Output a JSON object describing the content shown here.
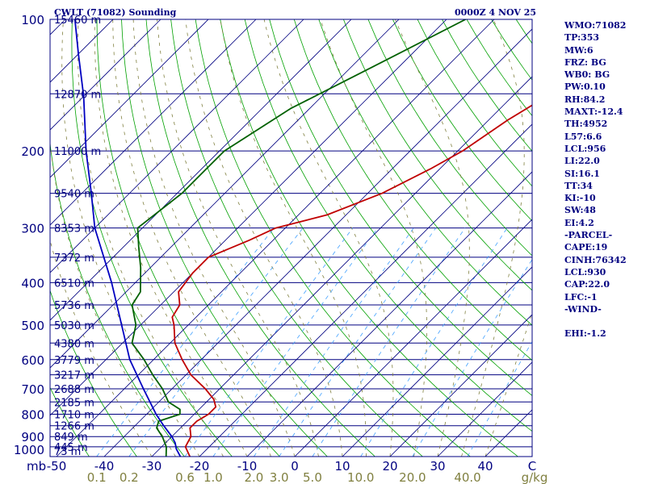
{
  "header": {
    "station": "CWLT (71082) Sounding",
    "time": "0000Z  4 NOV 25"
  },
  "indices": [
    "WMO:71082",
    "TP:353",
    "MW:6",
    "FRZ: BG",
    "WB0: BG",
    "PW:0.10",
    "RH:84.2",
    "MAXT:-12.4",
    "TH:4952",
    "L57:6.6",
    "LCL:956",
    "LI:22.0",
    "SI:16.1",
    "TT:34",
    "KI:-10",
    "SW:48",
    "EI:4.2",
    "-PARCEL-",
    "CAPE:19",
    "CINH:76342",
    "LCL:930",
    "CAP:22.0",
    "LFC:-1",
    "-WIND-",
    "",
    "EHI:-1.2"
  ],
  "colors": {
    "frame": "#000080",
    "isobar": "#000080",
    "isotherm": "#000080",
    "dry_adiabat": "#00a000",
    "moist_adiabat": "#808040",
    "mixing_ratio": "#40a0ff",
    "temperature": "#c00000",
    "dewpoint": "#006000",
    "parcel": "#0000c0",
    "mixing_label": "#808040"
  },
  "chart_data": {
    "type": "skew-t",
    "x_unit": "°C",
    "y_unit": "mb",
    "pressure_levels": [
      100,
      200,
      300,
      400,
      500,
      600,
      700,
      800,
      900,
      1000
    ],
    "pressure_labels": [
      "100",
      "200",
      "300",
      "400",
      "500",
      "600",
      "700",
      "800",
      "900",
      "1000"
    ],
    "y_axis_unit_label": "mb",
    "temperature_ticks": [
      -50,
      -40,
      -30,
      -20,
      -10,
      0,
      10,
      20,
      30,
      40
    ],
    "temperature_labels": [
      "-50",
      "-40",
      "-30",
      "-20",
      "-10",
      "0",
      "10",
      "20",
      "30",
      "40",
      "C"
    ],
    "height_labels": [
      {
        "p": 100,
        "text": "15460 m"
      },
      {
        "p": 148,
        "text": "12870 m"
      },
      {
        "p": 200,
        "text": "11000 m"
      },
      {
        "p": 250,
        "text": "9540 m"
      },
      {
        "p": 300,
        "text": "8353 m"
      },
      {
        "p": 350,
        "text": "7372 m"
      },
      {
        "p": 400,
        "text": "6510 m"
      },
      {
        "p": 450,
        "text": "5736 m"
      },
      {
        "p": 500,
        "text": "5030 m"
      },
      {
        "p": 550,
        "text": "4380 m"
      },
      {
        "p": 600,
        "text": "3779 m"
      },
      {
        "p": 650,
        "text": "3217 m"
      },
      {
        "p": 700,
        "text": "2688 m"
      },
      {
        "p": 750,
        "text": "2185 m"
      },
      {
        "p": 800,
        "text": "1710 m"
      },
      {
        "p": 850,
        "text": "1266 m"
      },
      {
        "p": 900,
        "text": "849 m"
      },
      {
        "p": 950,
        "text": "445 m"
      },
      {
        "p": 1000,
        "text": "73 m"
      }
    ],
    "mixing_ratio_lines": [
      0.1,
      0.2,
      0.6,
      1.0,
      2.0,
      3.0,
      5.0,
      10.0,
      20.0,
      40.0
    ],
    "mixing_ratio_labels": [
      "0.1",
      "0.2",
      "0.6",
      "1.0",
      "2.0",
      "3.0",
      "5.0",
      "10.0",
      "20.0",
      "40.0",
      "g/kg"
    ],
    "series": [
      {
        "name": "temperature",
        "points": [
          [
            100,
            -9.5
          ],
          [
            115,
            -14
          ],
          [
            140,
            -21
          ],
          [
            170,
            -26
          ],
          [
            200,
            -29
          ],
          [
            220,
            -32
          ],
          [
            250,
            -37
          ],
          [
            280,
            -44
          ],
          [
            300,
            -52
          ],
          [
            320,
            -55
          ],
          [
            350,
            -60
          ],
          [
            380,
            -60
          ],
          [
            420,
            -59
          ],
          [
            450,
            -56
          ],
          [
            480,
            -55
          ],
          [
            500,
            -53
          ],
          [
            550,
            -49
          ],
          [
            600,
            -44
          ],
          [
            650,
            -39
          ],
          [
            700,
            -33
          ],
          [
            740,
            -29
          ],
          [
            770,
            -27
          ],
          [
            800,
            -27
          ],
          [
            830,
            -28
          ],
          [
            860,
            -28
          ],
          [
            900,
            -26
          ],
          [
            950,
            -25
          ],
          [
            1000,
            -22
          ]
        ]
      },
      {
        "name": "dewpoint",
        "points": [
          [
            100,
            -56
          ],
          [
            130,
            -66
          ],
          [
            160,
            -74
          ],
          [
            200,
            -79
          ],
          [
            250,
            -79
          ],
          [
            300,
            -81
          ],
          [
            330,
            -77
          ],
          [
            370,
            -72
          ],
          [
            420,
            -67
          ],
          [
            450,
            -66
          ],
          [
            500,
            -61
          ],
          [
            550,
            -58
          ],
          [
            600,
            -52
          ],
          [
            650,
            -47
          ],
          [
            700,
            -42
          ],
          [
            750,
            -38
          ],
          [
            780,
            -34
          ],
          [
            800,
            -33
          ],
          [
            830,
            -36
          ],
          [
            860,
            -35
          ],
          [
            900,
            -32
          ],
          [
            950,
            -29
          ],
          [
            1000,
            -27
          ]
        ]
      },
      {
        "name": "parcel",
        "points": [
          [
            1000,
            -24
          ],
          [
            960,
            -26.5
          ],
          [
            930,
            -28
          ],
          [
            900,
            -30
          ],
          [
            850,
            -34
          ],
          [
            800,
            -38
          ],
          [
            700,
            -46
          ],
          [
            600,
            -55
          ],
          [
            500,
            -64
          ],
          [
            400,
            -75
          ],
          [
            300,
            -90
          ],
          [
            250,
            -98
          ],
          [
            200,
            -108
          ],
          [
            150,
            -120
          ],
          [
            120,
            -130
          ],
          [
            100,
            -138
          ]
        ]
      }
    ]
  }
}
